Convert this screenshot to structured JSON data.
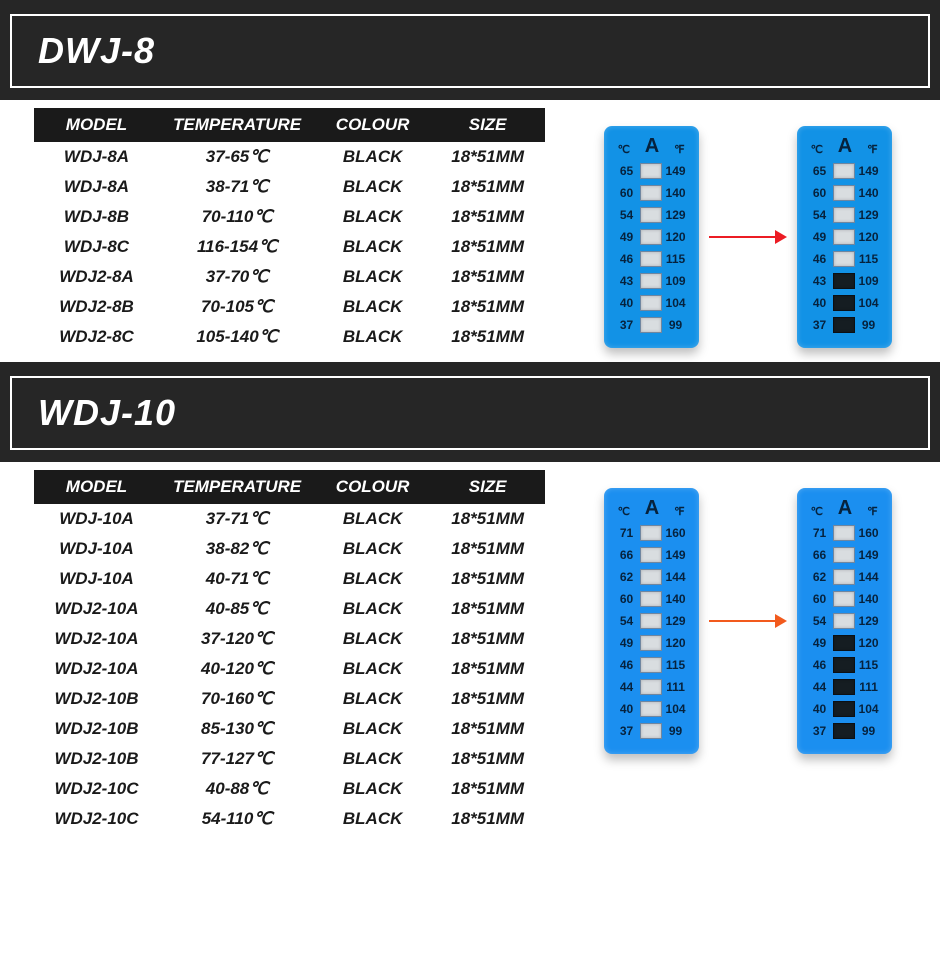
{
  "sections": [
    {
      "title": "DWJ-8",
      "table": {
        "columns": [
          "MODEL",
          "TEMPERATURE",
          "COLOUR",
          "SIZE"
        ],
        "rows": [
          [
            "WDJ-8A",
            "37-65℃",
            "BLACK",
            "18*51MM"
          ],
          [
            "WDJ-8A",
            "38-71℃",
            "BLACK",
            "18*51MM"
          ],
          [
            "WDJ-8B",
            "70-110℃",
            "BLACK",
            "18*51MM"
          ],
          [
            "WDJ-8C",
            "116-154℃",
            "BLACK",
            "18*51MM"
          ],
          [
            "WDJ2-8A",
            "37-70℃",
            "BLACK",
            "18*51MM"
          ],
          [
            "WDJ2-8B",
            "70-105℃",
            "BLACK",
            "18*51MM"
          ],
          [
            "WDJ2-8C",
            "105-140℃",
            "BLACK",
            "18*51MM"
          ]
        ]
      },
      "strip_illustration": {
        "strip_bg": "#1292e6",
        "arrow_color": "#ec1c24",
        "header": {
          "left": "℃",
          "center": "A",
          "right": "℉"
        },
        "rows": [
          {
            "c": "65",
            "f": "149"
          },
          {
            "c": "60",
            "f": "140"
          },
          {
            "c": "54",
            "f": "129"
          },
          {
            "c": "49",
            "f": "120"
          },
          {
            "c": "46",
            "f": "115"
          },
          {
            "c": "43",
            "f": "109"
          },
          {
            "c": "40",
            "f": "104"
          },
          {
            "c": "37",
            "f": "99"
          }
        ],
        "dark_from_index_right": 5
      }
    },
    {
      "title": "WDJ-10",
      "table": {
        "columns": [
          "MODEL",
          "TEMPERATURE",
          "COLOUR",
          "SIZE"
        ],
        "rows": [
          [
            "WDJ-10A",
            "37-71℃",
            "BLACK",
            "18*51MM"
          ],
          [
            "WDJ-10A",
            "38-82℃",
            "BLACK",
            "18*51MM"
          ],
          [
            "WDJ-10A",
            "40-71℃",
            "BLACK",
            "18*51MM"
          ],
          [
            "WDJ2-10A",
            "40-85℃",
            "BLACK",
            "18*51MM"
          ],
          [
            "WDJ2-10A",
            "37-120℃",
            "BLACK",
            "18*51MM"
          ],
          [
            "WDJ2-10A",
            "40-120℃",
            "BLACK",
            "18*51MM"
          ],
          [
            "WDJ2-10B",
            "70-160℃",
            "BLACK",
            "18*51MM"
          ],
          [
            "WDJ2-10B",
            "85-130℃",
            "BLACK",
            "18*51MM"
          ],
          [
            "WDJ2-10B",
            "77-127℃",
            "BLACK",
            "18*51MM"
          ],
          [
            "WDJ2-10C",
            "40-88℃",
            "BLACK",
            "18*51MM"
          ],
          [
            "WDJ2-10C",
            "54-110℃",
            "BLACK",
            "18*51MM"
          ]
        ]
      },
      "strip_illustration": {
        "strip_bg": "#1b8ff0",
        "arrow_color": "#f25a1d",
        "header": {
          "left": "℃",
          "center": "A",
          "right": "℉"
        },
        "rows": [
          {
            "c": "71",
            "f": "160"
          },
          {
            "c": "66",
            "f": "149"
          },
          {
            "c": "62",
            "f": "144"
          },
          {
            "c": "60",
            "f": "140"
          },
          {
            "c": "54",
            "f": "129"
          },
          {
            "c": "49",
            "f": "120"
          },
          {
            "c": "46",
            "f": "115"
          },
          {
            "c": "44",
            "f": "111"
          },
          {
            "c": "40",
            "f": "104"
          },
          {
            "c": "37",
            "f": "99"
          }
        ],
        "dark_from_index_right": 5
      }
    }
  ],
  "styling": {
    "title_bg": "#262626",
    "title_text_color": "#ffffff",
    "title_border_color": "#ffffff",
    "table_header_bg": "#1a1a1a",
    "table_header_text": "#ffffff",
    "body_text_color": "#1a1a1a",
    "box_light_bg": "#d9dde0",
    "box_dark_bg": "#151d22"
  }
}
